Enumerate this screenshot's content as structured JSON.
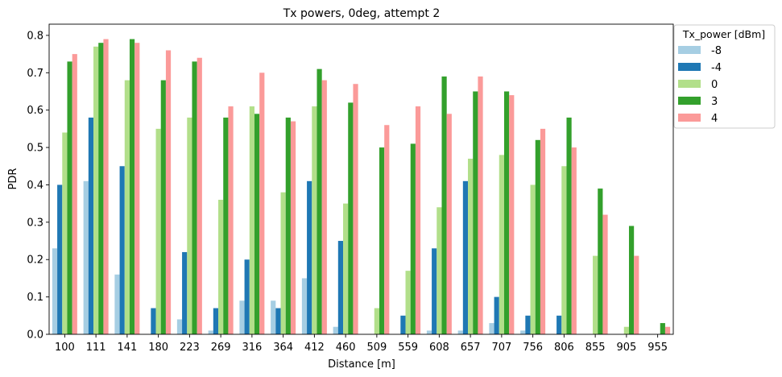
{
  "chart_data": {
    "type": "bar",
    "title": "Tx powers, 0deg, attempt 2",
    "xlabel": "Distance [m]",
    "ylabel": "PDR",
    "ylim": [
      0,
      0.83
    ],
    "yticks": [
      "0.0",
      "0.1",
      "0.2",
      "0.3",
      "0.4",
      "0.5",
      "0.6",
      "0.7",
      "0.8"
    ],
    "legend_title": "Tx_power [dBm]",
    "legend_position": "upper-right-outside",
    "grid": false,
    "categories": [
      "100",
      "111",
      "141",
      "180",
      "223",
      "269",
      "316",
      "364",
      "412",
      "460",
      "509",
      "559",
      "608",
      "657",
      "707",
      "756",
      "806",
      "855",
      "905",
      "955"
    ],
    "series": [
      {
        "name": "-8",
        "color": "#a6cee3",
        "values": [
          0.23,
          0.41,
          0.16,
          0,
          0.04,
          0.01,
          0.09,
          0.09,
          0.15,
          0.02,
          0,
          0,
          0.01,
          0.01,
          0.03,
          0.01,
          0,
          0,
          0,
          0
        ]
      },
      {
        "name": "-4",
        "color": "#1f78b4",
        "values": [
          0.4,
          0.58,
          0.45,
          0.07,
          0.22,
          0.07,
          0.2,
          0.07,
          0.41,
          0.25,
          0,
          0.05,
          0.23,
          0.41,
          0.1,
          0.05,
          0.05,
          0,
          0,
          0
        ]
      },
      {
        "name": "0",
        "color": "#b2df8a",
        "values": [
          0.54,
          0.77,
          0.68,
          0.55,
          0.58,
          0.36,
          0.61,
          0.38,
          0.61,
          0.35,
          0.07,
          0.17,
          0.34,
          0.47,
          0.48,
          0.4,
          0.45,
          0.21,
          0.02,
          0
        ]
      },
      {
        "name": "3",
        "color": "#33a02c",
        "values": [
          0.73,
          0.78,
          0.79,
          0.68,
          0.73,
          0.58,
          0.59,
          0.58,
          0.71,
          0.62,
          0.5,
          0.51,
          0.69,
          0.65,
          0.65,
          0.52,
          0.58,
          0.39,
          0.29,
          0.03
        ]
      },
      {
        "name": "4",
        "color": "#fb9a99",
        "values": [
          0.75,
          0.79,
          0.78,
          0.76,
          0.74,
          0.61,
          0.7,
          0.57,
          0.68,
          0.67,
          0.56,
          0.61,
          0.59,
          0.69,
          0.64,
          0.55,
          0.5,
          0.32,
          0.21,
          0.02
        ]
      }
    ]
  }
}
